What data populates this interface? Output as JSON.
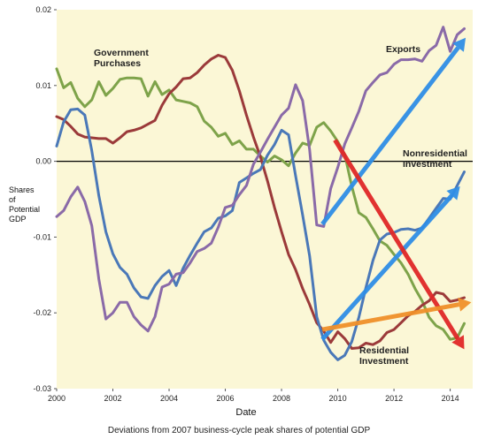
{
  "chart_data": {
    "type": "line",
    "title": "",
    "caption": "Deviations from 2007 business-cycle peak shares of potential GDP",
    "xlabel": "Date",
    "ylabel": [
      "Shares",
      "of",
      "Potential",
      "GDP"
    ],
    "xlim": [
      2000,
      2014.8
    ],
    "ylim": [
      -0.03,
      0.02
    ],
    "x_ticks": [
      2000,
      2002,
      2004,
      2006,
      2008,
      2010,
      2012,
      2014
    ],
    "y_ticks": [
      -0.03,
      -0.02,
      -0.01,
      0.0,
      0.01,
      0.02
    ],
    "y_tick_labels": [
      "-0.03",
      "-0.02",
      "-0.01",
      "0.00",
      "0.01",
      "0.02"
    ],
    "zero_line": 0,
    "grid": false,
    "legend": "none",
    "series": [
      {
        "name": "Government Purchases",
        "color": "#7ea34a",
        "x": [
          2000.0,
          2000.25,
          2000.5,
          2000.75,
          2001.0,
          2001.25,
          2001.5,
          2001.75,
          2002.0,
          2002.25,
          2002.5,
          2002.75,
          2003.0,
          2003.25,
          2003.5,
          2003.75,
          2004.0,
          2004.25,
          2004.5,
          2004.75,
          2005.0,
          2005.25,
          2005.5,
          2005.75,
          2006.0,
          2006.25,
          2006.5,
          2006.75,
          2007.0,
          2007.25,
          2007.5,
          2007.75,
          2008.0,
          2008.25,
          2008.5,
          2008.75,
          2009.0,
          2009.25,
          2009.5,
          2009.75,
          2010.0,
          2010.25,
          2010.5,
          2010.75,
          2011.0,
          2011.25,
          2011.5,
          2011.75,
          2012.0,
          2012.25,
          2012.5,
          2012.75,
          2013.0,
          2013.25,
          2013.5,
          2013.75,
          2014.0,
          2014.25,
          2014.5
        ],
        "y": [
          0.0122,
          0.0097,
          0.0104,
          0.0083,
          0.0072,
          0.0081,
          0.0105,
          0.0087,
          0.0096,
          0.0108,
          0.011,
          0.011,
          0.0109,
          0.0086,
          0.0105,
          0.0088,
          0.0094,
          0.0081,
          0.0079,
          0.0077,
          0.0072,
          0.0053,
          0.0045,
          0.0033,
          0.0037,
          0.0022,
          0.0027,
          0.0016,
          0.0016,
          0.0007,
          -0.0001,
          0.0007,
          0.0002,
          -0.0006,
          0.0011,
          0.0024,
          0.0021,
          0.0045,
          0.0051,
          0.004,
          0.0026,
          0.0009,
          -0.0033,
          -0.0068,
          -0.0074,
          -0.0089,
          -0.0105,
          -0.0111,
          -0.0123,
          -0.0134,
          -0.0149,
          -0.0168,
          -0.0184,
          -0.0206,
          -0.0217,
          -0.0222,
          -0.0235,
          -0.0233,
          -0.0214
        ]
      },
      {
        "name": "Residential Investment",
        "color": "#9b3a3a",
        "x": [
          2000.0,
          2000.25,
          2000.5,
          2000.75,
          2001.0,
          2001.25,
          2001.5,
          2001.75,
          2002.0,
          2002.25,
          2002.5,
          2002.75,
          2003.0,
          2003.25,
          2003.5,
          2003.75,
          2004.0,
          2004.25,
          2004.5,
          2004.75,
          2005.0,
          2005.25,
          2005.5,
          2005.75,
          2006.0,
          2006.25,
          2006.5,
          2006.75,
          2007.0,
          2007.25,
          2007.5,
          2007.75,
          2008.0,
          2008.25,
          2008.5,
          2008.75,
          2009.0,
          2009.25,
          2009.5,
          2009.75,
          2010.0,
          2010.25,
          2010.5,
          2010.75,
          2011.0,
          2011.25,
          2011.5,
          2011.75,
          2012.0,
          2012.25,
          2012.5,
          2012.75,
          2013.0,
          2013.25,
          2013.5,
          2013.75,
          2014.0,
          2014.25,
          2014.5
        ],
        "y": [
          0.0059,
          0.0055,
          0.0046,
          0.0036,
          0.0032,
          0.0031,
          0.003,
          0.003,
          0.0024,
          0.0031,
          0.0039,
          0.0041,
          0.0044,
          0.0049,
          0.0054,
          0.0074,
          0.0089,
          0.0098,
          0.0109,
          0.011,
          0.0117,
          0.0127,
          0.0135,
          0.014,
          0.0137,
          0.012,
          0.0093,
          0.0061,
          0.0032,
          0.0006,
          -0.0026,
          -0.0061,
          -0.0093,
          -0.0123,
          -0.0143,
          -0.0168,
          -0.0189,
          -0.0213,
          -0.0224,
          -0.0239,
          -0.0225,
          -0.0234,
          -0.0247,
          -0.0246,
          -0.024,
          -0.0242,
          -0.0237,
          -0.0226,
          -0.0222,
          -0.0213,
          -0.0204,
          -0.0198,
          -0.019,
          -0.0184,
          -0.0173,
          -0.0175,
          -0.0185,
          -0.0183,
          -0.018
        ]
      },
      {
        "name": "Nonresidential Investment",
        "color": "#4a78b8",
        "x": [
          2000.0,
          2000.25,
          2000.5,
          2000.75,
          2001.0,
          2001.25,
          2001.5,
          2001.75,
          2002.0,
          2002.25,
          2002.5,
          2002.75,
          2003.0,
          2003.25,
          2003.5,
          2003.75,
          2004.0,
          2004.25,
          2004.5,
          2004.75,
          2005.0,
          2005.25,
          2005.5,
          2005.75,
          2006.0,
          2006.25,
          2006.5,
          2006.75,
          2007.0,
          2007.25,
          2007.5,
          2007.75,
          2008.0,
          2008.25,
          2008.5,
          2008.75,
          2009.0,
          2009.25,
          2009.5,
          2009.75,
          2010.0,
          2010.25,
          2010.5,
          2010.75,
          2011.0,
          2011.25,
          2011.5,
          2011.75,
          2012.0,
          2012.25,
          2012.5,
          2012.75,
          2013.0,
          2013.25,
          2013.5,
          2013.75,
          2014.0,
          2014.25,
          2014.5
        ],
        "y": [
          0.002,
          0.0052,
          0.0068,
          0.0069,
          0.0061,
          0.0014,
          -0.0045,
          -0.0093,
          -0.0122,
          -0.014,
          -0.0149,
          -0.0167,
          -0.0179,
          -0.0181,
          -0.0164,
          -0.0152,
          -0.0144,
          -0.0164,
          -0.0141,
          -0.0124,
          -0.0108,
          -0.0093,
          -0.0088,
          -0.0075,
          -0.0072,
          -0.0065,
          -0.0028,
          -0.0022,
          -0.0016,
          -0.0011,
          0.0008,
          0.0022,
          0.0041,
          0.0035,
          -0.0019,
          -0.0071,
          -0.0125,
          -0.0205,
          -0.0236,
          -0.0252,
          -0.0262,
          -0.0256,
          -0.0238,
          -0.0206,
          -0.0167,
          -0.0131,
          -0.0104,
          -0.0096,
          -0.0094,
          -0.009,
          -0.0089,
          -0.0091,
          -0.0088,
          -0.0075,
          -0.0062,
          -0.0049,
          -0.005,
          -0.0032,
          -0.0014
        ]
      },
      {
        "name": "Exports",
        "color": "#8a6aa8",
        "x": [
          2000.0,
          2000.25,
          2000.5,
          2000.75,
          2001.0,
          2001.25,
          2001.5,
          2001.75,
          2002.0,
          2002.25,
          2002.5,
          2002.75,
          2003.0,
          2003.25,
          2003.5,
          2003.75,
          2004.0,
          2004.25,
          2004.5,
          2004.75,
          2005.0,
          2005.25,
          2005.5,
          2005.75,
          2006.0,
          2006.25,
          2006.5,
          2006.75,
          2007.0,
          2007.25,
          2007.5,
          2007.75,
          2008.0,
          2008.25,
          2008.5,
          2008.75,
          2009.0,
          2009.25,
          2009.5,
          2009.75,
          2010.0,
          2010.25,
          2010.5,
          2010.75,
          2011.0,
          2011.25,
          2011.5,
          2011.75,
          2012.0,
          2012.25,
          2012.5,
          2012.75,
          2013.0,
          2013.25,
          2013.5,
          2013.75,
          2014.0,
          2014.25,
          2014.5
        ],
        "y": [
          -0.0073,
          -0.0065,
          -0.0047,
          -0.0034,
          -0.0053,
          -0.0085,
          -0.0155,
          -0.0208,
          -0.02,
          -0.0186,
          -0.0186,
          -0.0205,
          -0.0216,
          -0.0224,
          -0.0205,
          -0.0166,
          -0.0162,
          -0.0149,
          -0.0147,
          -0.0134,
          -0.0119,
          -0.0115,
          -0.0108,
          -0.0087,
          -0.0061,
          -0.0058,
          -0.0044,
          -0.0032,
          -0.0004,
          0.0012,
          0.0029,
          0.0045,
          0.0061,
          0.007,
          0.0101,
          0.008,
          0.0015,
          -0.0084,
          -0.0086,
          -0.0036,
          -0.0008,
          0.0023,
          0.0044,
          0.0066,
          0.0093,
          0.0104,
          0.0114,
          0.0117,
          0.0128,
          0.0134,
          0.0134,
          0.0135,
          0.0132,
          0.0146,
          0.0153,
          0.0177,
          0.0145,
          0.0167,
          0.0175
        ]
      }
    ],
    "annotations": [
      {
        "text": [
          "Government",
          "Purchases"
        ],
        "series": "Government Purchases"
      },
      {
        "text": [
          "Exports"
        ],
        "series": "Exports"
      },
      {
        "text": [
          "Nonresidential",
          "Investment"
        ],
        "series": "Nonresidential Investment"
      },
      {
        "text": [
          "Residential",
          "Investment"
        ],
        "series": "Residential Investment"
      }
    ],
    "trend_arrows": [
      {
        "color": "#2f8ee6",
        "from": [
          2009.45,
          -0.0083
        ],
        "to": [
          2014.55,
          0.0163
        ]
      },
      {
        "color": "#2f8ee6",
        "from": [
          2009.45,
          -0.0235
        ],
        "to": [
          2014.35,
          -0.0033
        ]
      },
      {
        "color": "#e02828",
        "from": [
          2009.9,
          0.0028
        ],
        "to": [
          2014.5,
          -0.0248
        ]
      },
      {
        "color": "#f0902a",
        "from": [
          2009.45,
          -0.0222
        ],
        "to": [
          2014.75,
          -0.0186
        ]
      }
    ]
  }
}
